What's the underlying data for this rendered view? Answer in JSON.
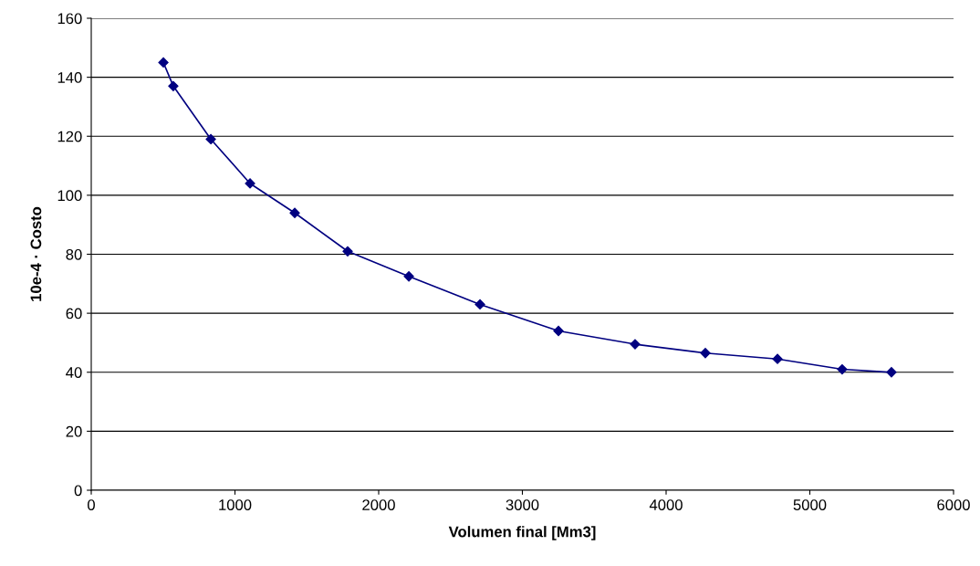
{
  "chart_data": {
    "type": "line",
    "xlabel": "Volumen final [Mm3]",
    "ylabel": "10e-4 · Costo",
    "series": [
      {
        "color": "#000080",
        "x": [
          502,
          571,
          832,
          1105,
          1416,
          1784,
          2210,
          2705,
          3251,
          3784,
          4273,
          4775,
          5225,
          5568
        ],
        "values": [
          145,
          137,
          119,
          104,
          94,
          81,
          72.5,
          63,
          54,
          49.5,
          46.5,
          44.5,
          41,
          40
        ]
      }
    ],
    "xlim": [
      0,
      6000
    ],
    "xticks": [
      0,
      1000,
      2000,
      3000,
      4000,
      5000,
      6000
    ],
    "ylim": [
      0,
      160
    ],
    "yticks": [
      0,
      20,
      40,
      60,
      80,
      100,
      120,
      140,
      160
    ],
    "grid": "y",
    "marker": "diamond",
    "line_style": "solid",
    "legend": false
  }
}
